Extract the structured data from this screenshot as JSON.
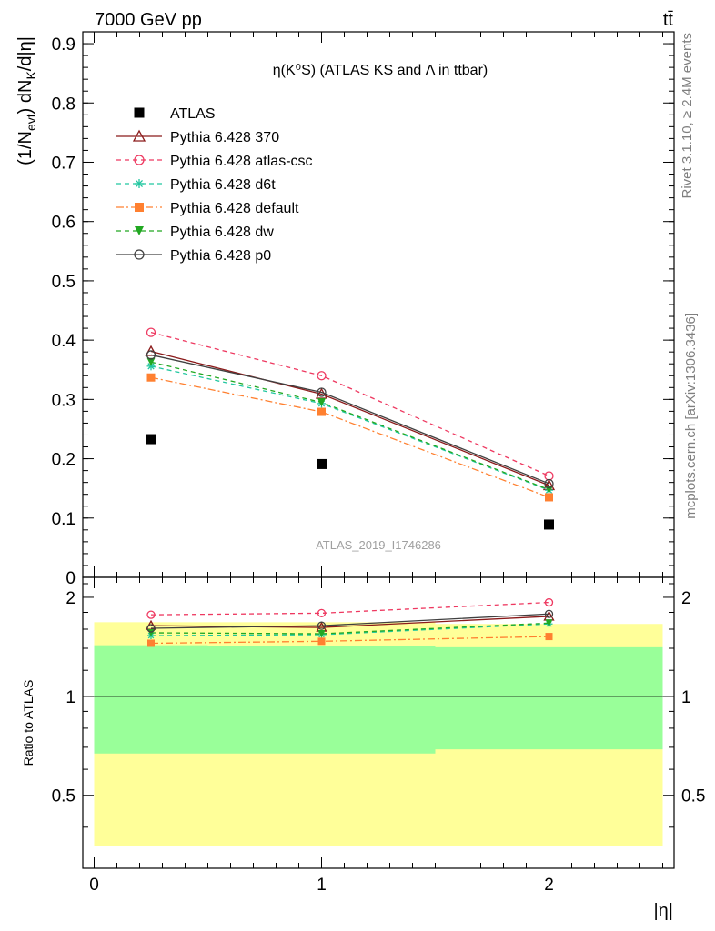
{
  "header": {
    "left": "7000 GeV pp",
    "right": "tt̄"
  },
  "plot_title": "η(K⁰S) (ATLAS KS and Λ in ttbar)",
  "watermark": "ATLAS_2019_I1746286",
  "side_labels": {
    "rivet": "Rivet 3.1.10, ≥ 2.4M events",
    "mcplots": "mcplots.cern.ch [arXiv:1306.3436]"
  },
  "chart_data": [
    {
      "type": "line",
      "panel": "main",
      "ylabel": "(1/Nevt) dNK/d|η|",
      "xlabel": "|η|",
      "xlim": [
        -0.05,
        2.55
      ],
      "ylim": [
        0,
        0.92
      ],
      "yticks": [
        0,
        0.1,
        0.2,
        0.3,
        0.4,
        0.5,
        0.6,
        0.7,
        0.8,
        0.9
      ],
      "ytick_labels": [
        "0",
        "0.1",
        "0.2",
        "0.3",
        "0.4",
        "0.5",
        "0.6",
        "0.7",
        "0.8",
        "0.9"
      ],
      "x": [
        0.25,
        1.0,
        2.0
      ],
      "legend_position": "top-left",
      "series": [
        {
          "name": "ATLAS",
          "values": [
            0.233,
            0.191,
            0.089
          ],
          "color": "#000000",
          "marker": "square",
          "dash": "none",
          "is_data": true
        },
        {
          "name": "Pythia 6.428 370",
          "values": [
            0.381,
            0.309,
            0.155
          ],
          "color": "#8b1a1a",
          "marker": "triangle",
          "dash": "solid"
        },
        {
          "name": "Pythia 6.428 atlas-csc",
          "values": [
            0.413,
            0.34,
            0.171
          ],
          "color": "#ee3860",
          "marker": "circle",
          "dash": "dashed"
        },
        {
          "name": "Pythia 6.428 d6t",
          "values": [
            0.356,
            0.293,
            0.147
          ],
          "color": "#22c7a0",
          "marker": "star",
          "dash": "dashed"
        },
        {
          "name": "Pythia 6.428 default",
          "values": [
            0.337,
            0.279,
            0.135
          ],
          "color": "#ff8030",
          "marker": "square",
          "dash": "dashdot"
        },
        {
          "name": "Pythia 6.428 dw",
          "values": [
            0.363,
            0.295,
            0.148
          ],
          "color": "#22a822",
          "marker": "triangle-down",
          "dash": "dashed"
        },
        {
          "name": "Pythia 6.428 p0",
          "values": [
            0.375,
            0.312,
            0.158
          ],
          "color": "#404040",
          "marker": "circle",
          "dash": "solid"
        }
      ]
    },
    {
      "type": "line",
      "panel": "ratio",
      "ylabel": "Ratio to ATLAS",
      "xlabel": "|η|",
      "ylim": [
        0.3,
        2.3
      ],
      "yscale": "log",
      "yticks": [
        0.5,
        1,
        2
      ],
      "ytick_labels": [
        "0.5",
        "1",
        "2"
      ],
      "xticks": [
        0,
        1,
        2
      ],
      "xtick_labels": [
        "0",
        "1",
        "2"
      ],
      "x": [
        0.25,
        1.0,
        2.0
      ],
      "bands": {
        "bins": [
          [
            0,
            0.5
          ],
          [
            0.5,
            1.5
          ],
          [
            1.5,
            2.5
          ]
        ],
        "yellow": [
          [
            0.35,
            1.68
          ],
          [
            0.35,
            1.68
          ],
          [
            0.35,
            1.66
          ]
        ],
        "green": [
          [
            0.67,
            1.43
          ],
          [
            0.67,
            1.42
          ],
          [
            0.69,
            1.41
          ]
        ]
      },
      "series": [
        {
          "name": "Pythia 6.428 370",
          "values": [
            1.64,
            1.62,
            1.75
          ]
        },
        {
          "name": "Pythia 6.428 atlas-csc",
          "values": [
            1.77,
            1.79,
            1.93
          ]
        },
        {
          "name": "Pythia 6.428 d6t",
          "values": [
            1.53,
            1.54,
            1.66
          ]
        },
        {
          "name": "Pythia 6.428 default",
          "values": [
            1.45,
            1.47,
            1.52
          ]
        },
        {
          "name": "Pythia 6.428 dw",
          "values": [
            1.56,
            1.55,
            1.67
          ]
        },
        {
          "name": "Pythia 6.428 p0",
          "values": [
            1.61,
            1.64,
            1.78
          ]
        }
      ]
    }
  ]
}
